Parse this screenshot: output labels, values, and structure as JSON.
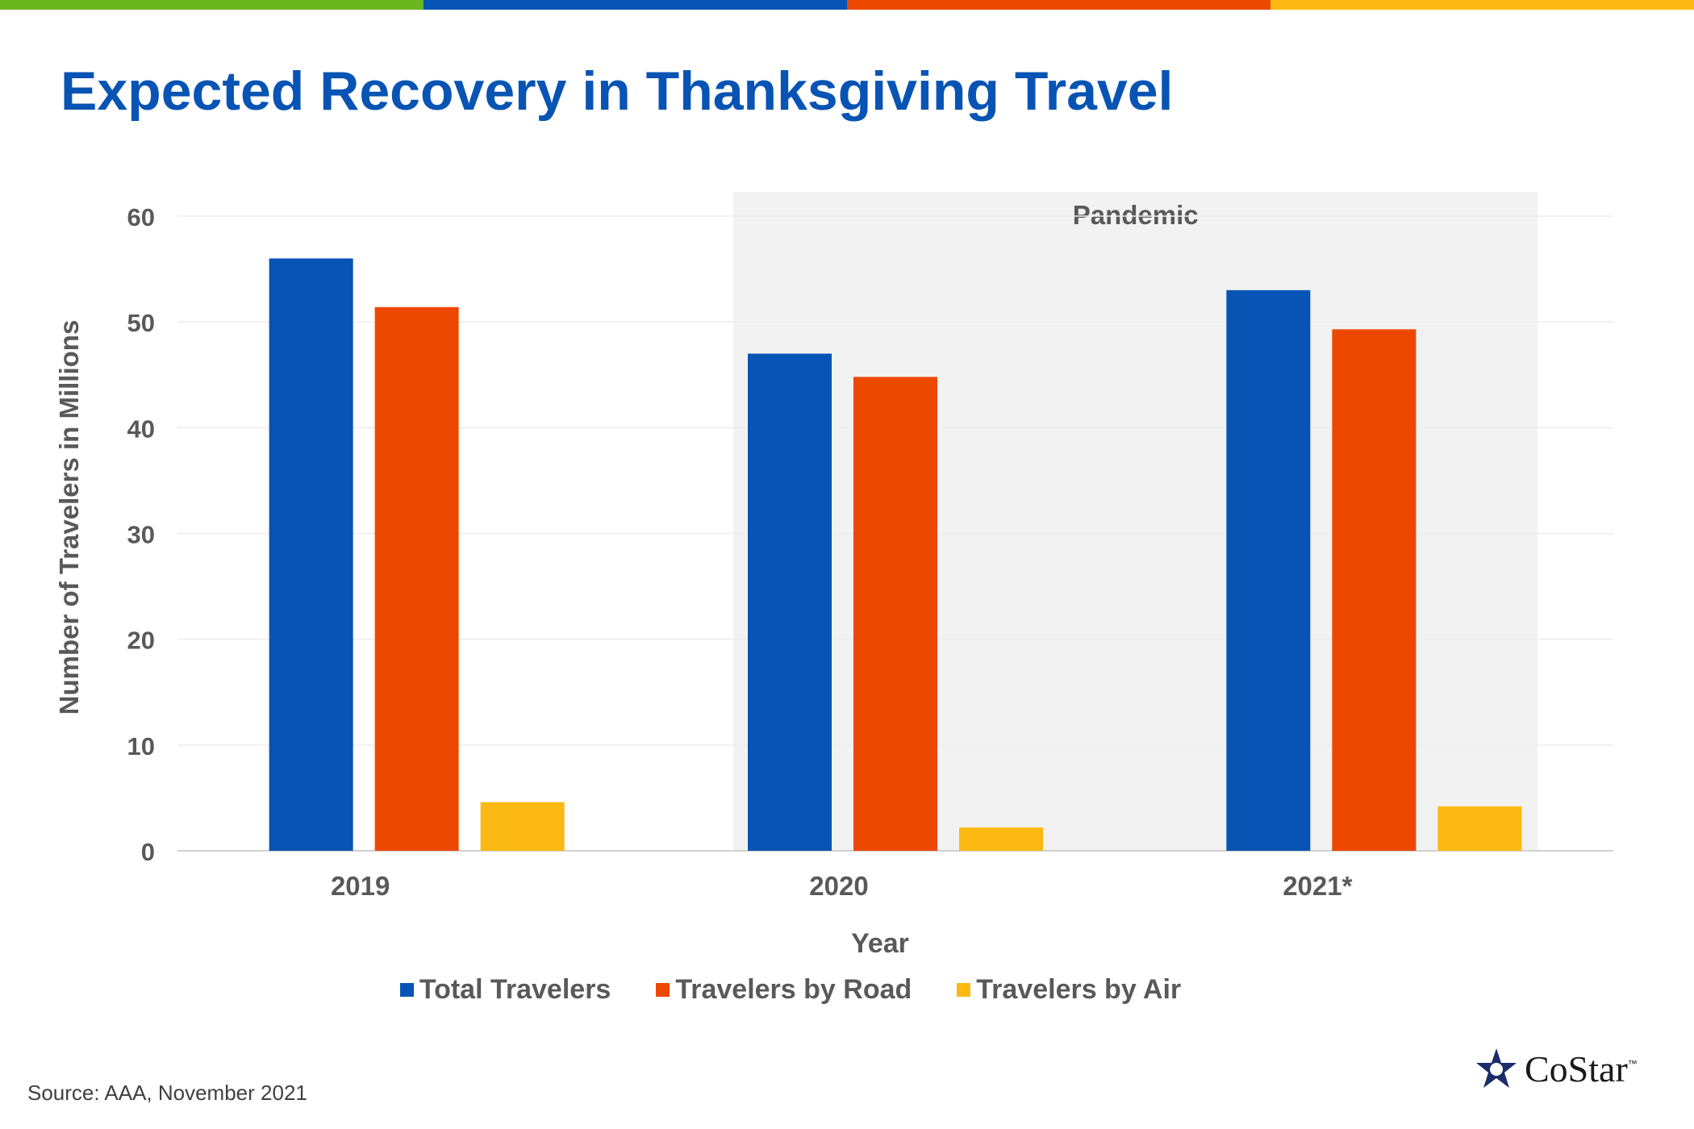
{
  "brand_colors": [
    "#6BB61E",
    "#0854B4",
    "#ED4800",
    "#FDB913"
  ],
  "title": "Expected Recovery in Thanksgiving Travel",
  "chart_data": {
    "type": "bar",
    "categories": [
      "2019",
      "2020",
      "2021*"
    ],
    "series": [
      {
        "name": "Total Travelers",
        "values": [
          56.0,
          47.0,
          53.0
        ],
        "color": "#0854B4"
      },
      {
        "name": "Travelers by Road",
        "values": [
          51.4,
          44.8,
          49.3
        ],
        "color": "#ED4800"
      },
      {
        "name": "Travelers by Air",
        "values": [
          4.6,
          2.2,
          4.2
        ],
        "color": "#FDB913"
      }
    ],
    "xlabel": "Year",
    "ylabel": "Number of Travelers in Millions",
    "ylim": [
      0,
      60
    ],
    "yticks": [
      "0",
      "10",
      "20",
      "30",
      "40",
      "50",
      "60"
    ],
    "grid": true,
    "legend_position": "bottom",
    "annotation": {
      "label": "Pandemic",
      "span": [
        "2020",
        "2021*"
      ],
      "color": "#F2F2F2"
    }
  },
  "source": "Source: AAA, November 2021",
  "logo": {
    "name": "costar-logo",
    "text": "CoStar",
    "tm": "™"
  }
}
